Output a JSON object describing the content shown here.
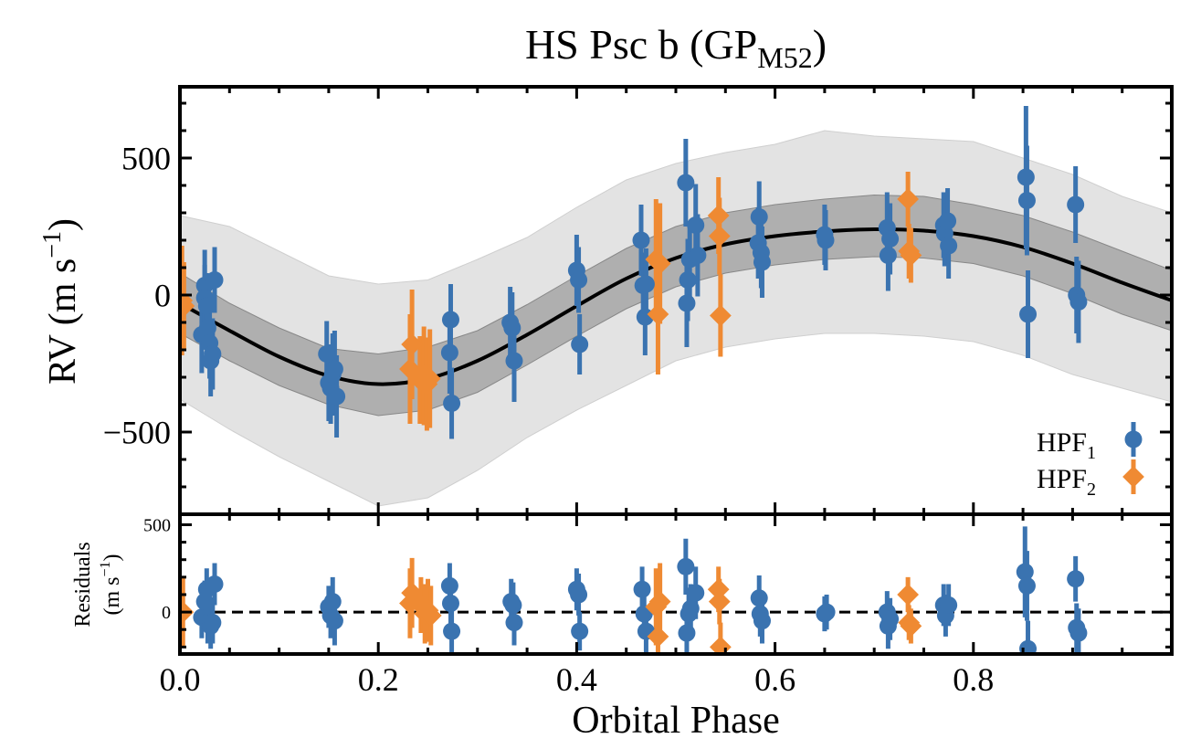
{
  "title": {
    "main": "HS Psc b (GP",
    "sub": "M52",
    "close": ")"
  },
  "colors": {
    "hpf1": "#3a73b0",
    "hpf2": "#ef8a33",
    "model": "#000000",
    "band1": "#9e9e9e",
    "band2": "#e3e3e3"
  },
  "chart_data": [
    {
      "type": "scatter",
      "panel": "top",
      "ylabel": "RV (m s⁻¹)",
      "xlim": [
        0,
        1
      ],
      "ylim": [
        -800,
        760
      ],
      "yticks": [
        -500,
        0,
        500
      ],
      "ytick_labels": [
        "−500",
        "0",
        "500"
      ],
      "model_curve": {
        "x": [
          0.0,
          0.05,
          0.1,
          0.15,
          0.2,
          0.25,
          0.3,
          0.35,
          0.4,
          0.45,
          0.5,
          0.55,
          0.6,
          0.65,
          0.7,
          0.75,
          0.8,
          0.85,
          0.9,
          0.95,
          1.0
        ],
        "y": [
          -30,
          -130,
          -225,
          -295,
          -325,
          -305,
          -240,
          -145,
          -40,
          60,
          135,
          185,
          215,
          232,
          240,
          235,
          215,
          175,
          115,
          45,
          -20
        ]
      },
      "band_1sigma": {
        "lower": [
          -140,
          -240,
          -330,
          -400,
          -440,
          -420,
          -355,
          -255,
          -150,
          -50,
          30,
          80,
          110,
          130,
          140,
          135,
          115,
          70,
          5,
          -70,
          -130
        ],
        "upper": [
          80,
          -30,
          -120,
          -195,
          -215,
          -190,
          -130,
          -35,
          70,
          170,
          250,
          300,
          330,
          350,
          365,
          360,
          330,
          290,
          230,
          160,
          90
        ]
      },
      "band_2sigma": {
        "lower": [
          -380,
          -490,
          -590,
          -680,
          -770,
          -740,
          -640,
          -520,
          -420,
          -330,
          -240,
          -190,
          -160,
          -140,
          -140,
          -150,
          -170,
          -220,
          -290,
          -340,
          -390
        ],
        "upper": [
          290,
          250,
          160,
          70,
          40,
          55,
          130,
          210,
          320,
          420,
          480,
          520,
          550,
          600,
          580,
          570,
          560,
          500,
          440,
          360,
          300
        ]
      },
      "series": [
        {
          "name": "HPF",
          "name_sub": "1",
          "marker": "circle",
          "points": [
            [
              0.022,
              -145,
              140
            ],
            [
              0.025,
              35,
              130
            ],
            [
              0.025,
              -10,
              120
            ],
            [
              0.027,
              -40,
              120
            ],
            [
              0.028,
              -120,
              120
            ],
            [
              0.03,
              -175,
              130
            ],
            [
              0.031,
              -240,
              130
            ],
            [
              0.033,
              -215,
              130
            ],
            [
              0.035,
              55,
              120
            ],
            [
              0.148,
              -215,
              120
            ],
            [
              0.15,
              -320,
              140
            ],
            [
              0.152,
              -340,
              130
            ],
            [
              0.154,
              -290,
              150
            ],
            [
              0.156,
              -270,
              140
            ],
            [
              0.158,
              -370,
              150
            ],
            [
              0.272,
              -210,
              150
            ],
            [
              0.273,
              -90,
              130
            ],
            [
              0.274,
              -395,
              130
            ],
            [
              0.333,
              -100,
              130
            ],
            [
              0.335,
              -120,
              130
            ],
            [
              0.337,
              -240,
              150
            ],
            [
              0.4,
              90,
              130
            ],
            [
              0.402,
              55,
              120
            ],
            [
              0.403,
              -180,
              110
            ],
            [
              0.465,
              200,
              130
            ],
            [
              0.467,
              35,
              120
            ],
            [
              0.469,
              -80,
              140
            ],
            [
              0.47,
              40,
              130
            ],
            [
              0.51,
              410,
              160
            ],
            [
              0.511,
              -30,
              160
            ],
            [
              0.512,
              55,
              150
            ],
            [
              0.514,
              130,
              140
            ],
            [
              0.52,
              255,
              150
            ],
            [
              0.522,
              145,
              150
            ],
            [
              0.583,
              190,
              130
            ],
            [
              0.584,
              285,
              130
            ],
            [
              0.586,
              155,
              130
            ],
            [
              0.587,
              120,
              130
            ],
            [
              0.65,
              220,
              110
            ],
            [
              0.651,
              200,
              110
            ],
            [
              0.713,
              245,
              130
            ],
            [
              0.714,
              145,
              130
            ],
            [
              0.716,
              205,
              130
            ],
            [
              0.77,
              255,
              120
            ],
            [
              0.771,
              225,
              120
            ],
            [
              0.774,
              270,
              120
            ],
            [
              0.775,
              180,
              120
            ],
            [
              0.853,
              430,
              260
            ],
            [
              0.854,
              345,
              200
            ],
            [
              0.855,
              -70,
              160
            ],
            [
              0.903,
              330,
              140
            ],
            [
              0.904,
              0,
              140
            ],
            [
              0.906,
              -25,
              150
            ]
          ]
        },
        {
          "name": "HPF",
          "name_sub": "2",
          "marker": "diamond",
          "points": [
            [
              0.002,
              -20,
              200
            ],
            [
              0.004,
              -40,
              160
            ],
            [
              0.232,
              -270,
              200
            ],
            [
              0.234,
              -180,
              200
            ],
            [
              0.242,
              -310,
              160
            ],
            [
              0.246,
              -295,
              180
            ],
            [
              0.249,
              -325,
              170
            ],
            [
              0.252,
              -305,
              180
            ],
            [
              0.48,
              130,
              220
            ],
            [
              0.482,
              -70,
              220
            ],
            [
              0.484,
              115,
              220
            ],
            [
              0.543,
              290,
              140
            ],
            [
              0.544,
              215,
              140
            ],
            [
              0.545,
              -75,
              150
            ],
            [
              0.734,
              350,
              100
            ],
            [
              0.735,
              160,
              100
            ],
            [
              0.737,
              145,
              100
            ]
          ]
        }
      ],
      "legend": "lower-right"
    },
    {
      "type": "scatter",
      "panel": "bottom",
      "xlabel": "Orbital Phase",
      "ylabel": "Residuals",
      "ylabel_units": "(m s⁻¹)",
      "xlim": [
        0,
        1
      ],
      "ylim": [
        -240,
        560
      ],
      "xticks": [
        0.0,
        0.2,
        0.4,
        0.6,
        0.8
      ],
      "xtick_labels": [
        "0.0",
        "0.2",
        "0.4",
        "0.6",
        "0.8"
      ],
      "yticks": [
        0,
        500
      ],
      "ytick_labels": [
        "0",
        "500"
      ],
      "zero_line": "dashed",
      "series": [
        {
          "name": "HPF",
          "name_sub": "1",
          "marker": "circle",
          "points": [
            [
              0.022,
              -30,
              120
            ],
            [
              0.025,
              60,
              120
            ],
            [
              0.027,
              130,
              120
            ],
            [
              0.028,
              -60,
              120
            ],
            [
              0.031,
              -80,
              130
            ],
            [
              0.033,
              -60,
              120
            ],
            [
              0.035,
              160,
              120
            ],
            [
              0.15,
              30,
              120
            ],
            [
              0.152,
              -20,
              130
            ],
            [
              0.154,
              60,
              140
            ],
            [
              0.156,
              -50,
              140
            ],
            [
              0.272,
              150,
              130
            ],
            [
              0.273,
              50,
              130
            ],
            [
              0.274,
              -110,
              130
            ],
            [
              0.334,
              60,
              130
            ],
            [
              0.336,
              40,
              130
            ],
            [
              0.337,
              -60,
              130
            ],
            [
              0.4,
              130,
              120
            ],
            [
              0.402,
              100,
              120
            ],
            [
              0.403,
              -110,
              110
            ],
            [
              0.466,
              130,
              130
            ],
            [
              0.468,
              -10,
              120
            ],
            [
              0.47,
              -110,
              130
            ],
            [
              0.51,
              260,
              160
            ],
            [
              0.511,
              -120,
              150
            ],
            [
              0.513,
              -10,
              150
            ],
            [
              0.515,
              20,
              140
            ],
            [
              0.52,
              110,
              150
            ],
            [
              0.584,
              80,
              130
            ],
            [
              0.585,
              -10,
              130
            ],
            [
              0.587,
              -50,
              130
            ],
            [
              0.65,
              -10,
              100
            ],
            [
              0.652,
              0,
              100
            ],
            [
              0.713,
              0,
              120
            ],
            [
              0.714,
              -80,
              130
            ],
            [
              0.716,
              -40,
              120
            ],
            [
              0.77,
              40,
              120
            ],
            [
              0.772,
              -20,
              120
            ],
            [
              0.775,
              40,
              120
            ],
            [
              0.852,
              230,
              260
            ],
            [
              0.854,
              150,
              200
            ],
            [
              0.855,
              -210,
              160
            ],
            [
              0.903,
              190,
              130
            ],
            [
              0.904,
              -90,
              140
            ],
            [
              0.906,
              -120,
              140
            ]
          ]
        },
        {
          "name": "HPF",
          "name_sub": "2",
          "marker": "diamond",
          "points": [
            [
              0.003,
              0,
              200
            ],
            [
              0.232,
              50,
              200
            ],
            [
              0.234,
              110,
              200
            ],
            [
              0.243,
              40,
              160
            ],
            [
              0.247,
              -10,
              170
            ],
            [
              0.25,
              10,
              180
            ],
            [
              0.253,
              -20,
              170
            ],
            [
              0.48,
              30,
              220
            ],
            [
              0.482,
              -140,
              220
            ],
            [
              0.484,
              60,
              220
            ],
            [
              0.543,
              130,
              130
            ],
            [
              0.544,
              60,
              130
            ],
            [
              0.545,
              -200,
              140
            ],
            [
              0.734,
              100,
              100
            ],
            [
              0.735,
              -60,
              100
            ],
            [
              0.737,
              -80,
              100
            ]
          ]
        }
      ]
    }
  ]
}
